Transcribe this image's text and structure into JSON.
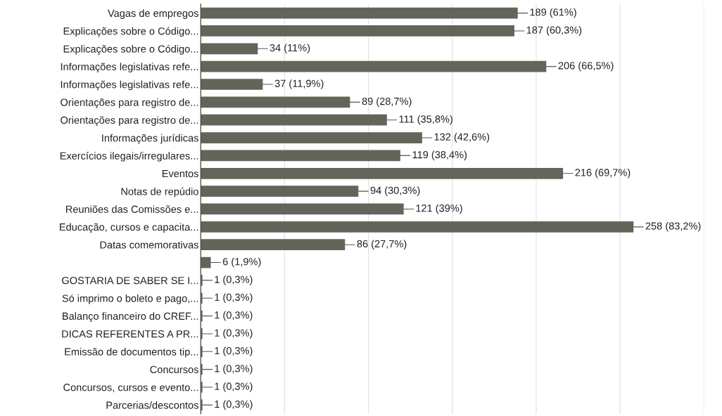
{
  "chart_data": {
    "type": "bar",
    "orientation": "horizontal",
    "categories": [
      "Vagas de empregos",
      "Explicações sobre o Código...",
      "Explicações sobre o Código...",
      "Informações legislativas refe...",
      "Informações legislativas refe...",
      "Orientações para registro de...",
      "Orientações para registro de...",
      "Informações jurídicas",
      "Exercícios ilegais/irregulares...",
      "Eventos",
      "Notas de repúdio",
      "Reuniões das Comissões e...",
      "Educação, cursos e capacita...",
      "Datas comemorativas",
      null,
      "GOSTARIA DE SABER SE I...",
      "Só imprimo o boleto e pago,...",
      "Balanço financeiro do CREF...",
      "DICAS REFERENTES A PR...",
      "Emissão de documentos tip...",
      "Concursos",
      "Concursos, cursos e evento...",
      "Parcerias/descontos"
    ],
    "values": [
      189,
      187,
      34,
      206,
      37,
      89,
      111,
      132,
      119,
      216,
      94,
      121,
      258,
      86,
      6,
      1,
      1,
      1,
      1,
      1,
      1,
      1,
      1
    ],
    "value_labels": [
      "189 (61%)",
      "187 (60,3%)",
      "34 (11%)",
      "206 (66,5%)",
      "37 (11,9%)",
      "89 (28,7%)",
      "111 (35,8%)",
      "132 (42,6%)",
      "119 (38,4%)",
      "216 (69,7%)",
      "94 (30,3%)",
      "121 (39%)",
      "258 (83,2%)",
      "86 (27,7%)",
      "6 (1,9%)",
      "1 (0,3%)",
      "1 (0,3%)",
      "1 (0,3%)",
      "1 (0,3%)",
      "1 (0,3%)",
      "1 (0,3%)",
      "1 (0,3%)",
      "1 (0,3%)"
    ],
    "color": "#64645a",
    "xlim": [
      0,
      300
    ],
    "xticks": [
      {
        "value": 0,
        "label": null
      },
      {
        "value": 50,
        "label": null
      },
      {
        "value": 100,
        "label": null
      },
      {
        "value": 150,
        "label": null
      },
      {
        "value": 200,
        "label": null
      },
      {
        "value": 250,
        "label": null
      },
      {
        "value": 300,
        "label": null
      }
    ],
    "tick_labels": "y",
    "grid": "x"
  }
}
